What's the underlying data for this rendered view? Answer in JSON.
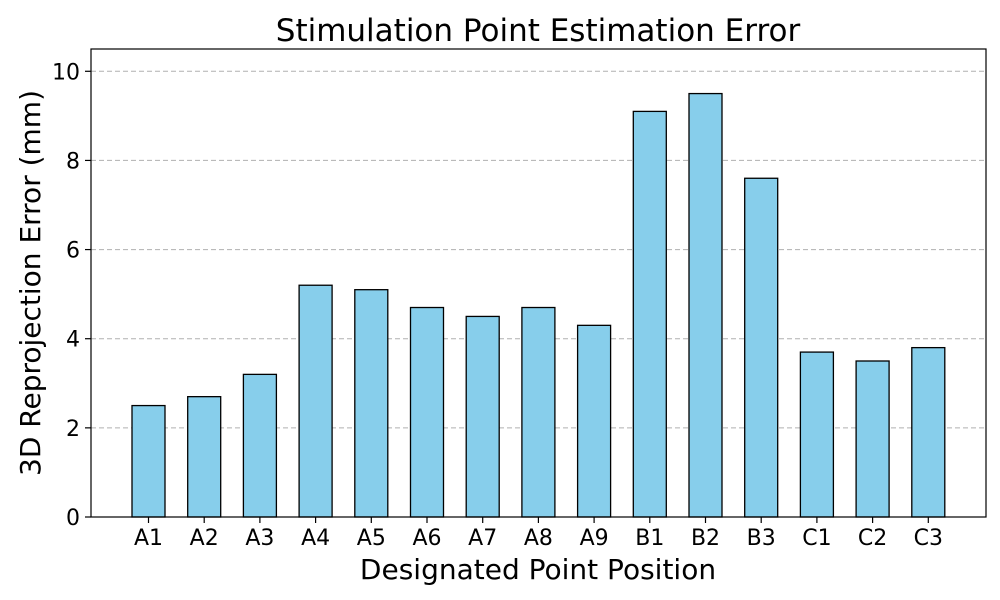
{
  "chart_data": {
    "type": "bar",
    "title": "Stimulation Point Estimation Error",
    "xlabel": "Designated Point Position",
    "ylabel": "3D Reprojection Error (mm)",
    "categories": [
      "A1",
      "A2",
      "A3",
      "A4",
      "A5",
      "A6",
      "A7",
      "A8",
      "A9",
      "B1",
      "B2",
      "B3",
      "C1",
      "C2",
      "C3"
    ],
    "values": [
      2.5,
      2.7,
      3.2,
      5.2,
      5.1,
      4.7,
      4.5,
      4.7,
      4.3,
      9.1,
      9.5,
      7.6,
      3.7,
      3.5,
      3.8
    ],
    "ylim": [
      0,
      10.5
    ],
    "yticks": [
      0,
      2,
      4,
      6,
      8,
      10
    ],
    "grid": "y-axis dashed",
    "legend": "none",
    "bar_color": "#87ceeb",
    "edge_color": "#000000"
  }
}
